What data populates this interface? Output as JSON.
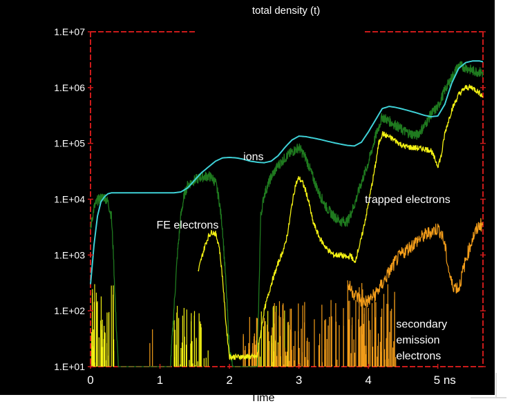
{
  "chart_data": {
    "type": "line",
    "title": "total density (t)",
    "xlabel": "Time",
    "ylabel": "",
    "x_unit": "ns",
    "yscale": "log",
    "xlim": [
      0,
      5.65
    ],
    "ylim": [
      10,
      10000000
    ],
    "x_ticks": [
      {
        "value": 0,
        "label": "0"
      },
      {
        "value": 1,
        "label": "1"
      },
      {
        "value": 2,
        "label": "2"
      },
      {
        "value": 3,
        "label": "3"
      },
      {
        "value": 4,
        "label": "4"
      },
      {
        "value": 5,
        "label": "5 ns"
      }
    ],
    "y_ticks": [
      {
        "value": 10,
        "label": "1.E+01"
      },
      {
        "value": 100,
        "label": "1.E+02"
      },
      {
        "value": 1000,
        "label": "1.E+03"
      },
      {
        "value": 10000,
        "label": "1.E+04"
      },
      {
        "value": 100000,
        "label": "1.E+05"
      },
      {
        "value": 1000000,
        "label": "1.E+06"
      },
      {
        "value": 10000000,
        "label": "1.E+07"
      }
    ],
    "grid": false,
    "colors": {
      "ions": "#3fd2d8",
      "fe": "#1f7a1f",
      "trapped": "#f4f214",
      "secondary": "#f59e1a",
      "frame": "#cc1a1a",
      "background": "#000000"
    },
    "annotations": [
      {
        "text": "ions",
        "x": 2.2,
        "y": 50000
      },
      {
        "text": "FE electrons",
        "x": 0.95,
        "y": 3000
      },
      {
        "text": "trapped electrons",
        "x": 3.95,
        "y": 8500
      },
      {
        "text": "secondary emission electrons",
        "lines": [
          "secondary",
          "emission",
          "electrons"
        ],
        "x": 4.4,
        "y": 50
      }
    ],
    "series": [
      {
        "key": "ions",
        "x": [
          0,
          0.05,
          0.1,
          0.15,
          0.2,
          0.25,
          0.3,
          0.4,
          0.6,
          0.8,
          1.0,
          1.2,
          1.3,
          1.4,
          1.5,
          1.6,
          1.7,
          1.8,
          1.9,
          2.0,
          2.1,
          2.2,
          2.3,
          2.4,
          2.5,
          2.6,
          2.7,
          2.8,
          2.9,
          3.0,
          3.1,
          3.2,
          3.3,
          3.4,
          3.5,
          3.6,
          3.7,
          3.8,
          3.9,
          4.0,
          4.1,
          4.2,
          4.3,
          4.4,
          4.5,
          4.6,
          4.7,
          4.8,
          4.9,
          5.0,
          5.1,
          5.2,
          5.3,
          5.4,
          5.5,
          5.6,
          5.65
        ],
        "y": [
          300,
          1500,
          5000,
          9000,
          11000,
          12500,
          13000,
          13000,
          13000,
          13000,
          13000,
          13000,
          13500,
          16000,
          22000,
          30000,
          38000,
          48000,
          55000,
          56000,
          55000,
          52000,
          48000,
          46000,
          45000,
          48000,
          60000,
          85000,
          115000,
          135000,
          132000,
          125000,
          118000,
          110000,
          103000,
          97000,
          92000,
          90000,
          105000,
          160000,
          260000,
          420000,
          460000,
          440000,
          410000,
          380000,
          350000,
          320000,
          300000,
          310000,
          500000,
          1200000,
          2200000,
          2800000,
          3000000,
          3000000,
          2900000
        ]
      },
      {
        "key": "fe",
        "x": [
          0,
          0.05,
          0.1,
          0.15,
          0.2,
          0.25,
          0.3,
          0.33,
          0.36,
          0.4,
          1.15,
          1.2,
          1.25,
          1.3,
          1.35,
          1.4,
          1.5,
          1.6,
          1.7,
          1.75,
          1.8,
          1.85,
          1.9,
          1.95,
          2.0,
          2.05,
          2.4,
          2.45,
          2.5,
          2.6,
          2.7,
          2.8,
          2.9,
          3.0,
          3.1,
          3.2,
          3.3,
          3.4,
          3.5,
          3.6,
          3.7,
          3.8,
          3.9,
          4.0,
          4.1,
          4.2,
          4.3,
          4.4,
          4.5,
          4.6,
          4.7,
          4.8,
          4.9,
          5.0,
          5.1,
          5.2,
          5.3,
          5.4,
          5.5,
          5.6,
          5.65
        ],
        "y": [
          3000,
          7000,
          9500,
          10500,
          11000,
          9000,
          5000,
          1000,
          100,
          10,
          10,
          100,
          1000,
          5000,
          12000,
          18000,
          22000,
          25000,
          26000,
          24000,
          20000,
          10000,
          3000,
          300,
          20,
          10,
          10,
          5000,
          12000,
          25000,
          40000,
          55000,
          70000,
          85000,
          55000,
          25000,
          12000,
          7000,
          5000,
          4000,
          4000,
          8000,
          20000,
          45000,
          130000,
          300000,
          250000,
          210000,
          170000,
          150000,
          140000,
          200000,
          330000,
          450000,
          900000,
          1500000,
          2500000,
          2300000,
          2000000,
          1900000,
          1800000
        ]
      },
      {
        "key": "trapped",
        "x": [
          1.55,
          1.6,
          1.65,
          1.7,
          1.75,
          1.8,
          1.85,
          1.9,
          1.95,
          2.0,
          2.4,
          2.45,
          2.5,
          2.6,
          2.7,
          2.8,
          2.85,
          2.9,
          2.95,
          3.0,
          3.05,
          3.1,
          3.15,
          3.2,
          3.3,
          3.4,
          3.5,
          3.6,
          3.7,
          3.75,
          3.8,
          3.9,
          4.0,
          4.1,
          4.15,
          4.2,
          4.3,
          4.4,
          4.5,
          4.6,
          4.7,
          4.8,
          4.9,
          4.95,
          5.0,
          5.05,
          5.1,
          5.2,
          5.3,
          5.4,
          5.5,
          5.6,
          5.65
        ],
        "y": [
          500,
          900,
          1500,
          2200,
          2600,
          2400,
          1500,
          400,
          60,
          15,
          15,
          40,
          100,
          300,
          700,
          1500,
          3000,
          8000,
          18000,
          24000,
          20000,
          14000,
          8000,
          4000,
          2000,
          1300,
          1000,
          1000,
          900,
          1000,
          700,
          2000,
          8000,
          40000,
          100000,
          150000,
          130000,
          110000,
          90000,
          85000,
          82000,
          80000,
          75000,
          55000,
          40000,
          60000,
          150000,
          400000,
          750000,
          1000000,
          1000000,
          800000,
          700000
        ]
      },
      {
        "key": "secondary",
        "x": [
          3.7,
          3.8,
          3.9,
          4.0,
          4.1,
          4.2,
          4.3,
          4.4,
          4.5,
          4.6,
          4.7,
          4.8,
          4.9,
          5.0,
          5.05,
          5.1,
          5.15,
          5.2,
          5.3,
          5.4,
          5.5,
          5.6,
          5.65
        ],
        "y": [
          300,
          200,
          150,
          150,
          200,
          300,
          500,
          800,
          1100,
          1400,
          1800,
          2200,
          2600,
          3000,
          2500,
          1500,
          600,
          300,
          250,
          800,
          2000,
          3500,
          3500
        ]
      }
    ]
  }
}
